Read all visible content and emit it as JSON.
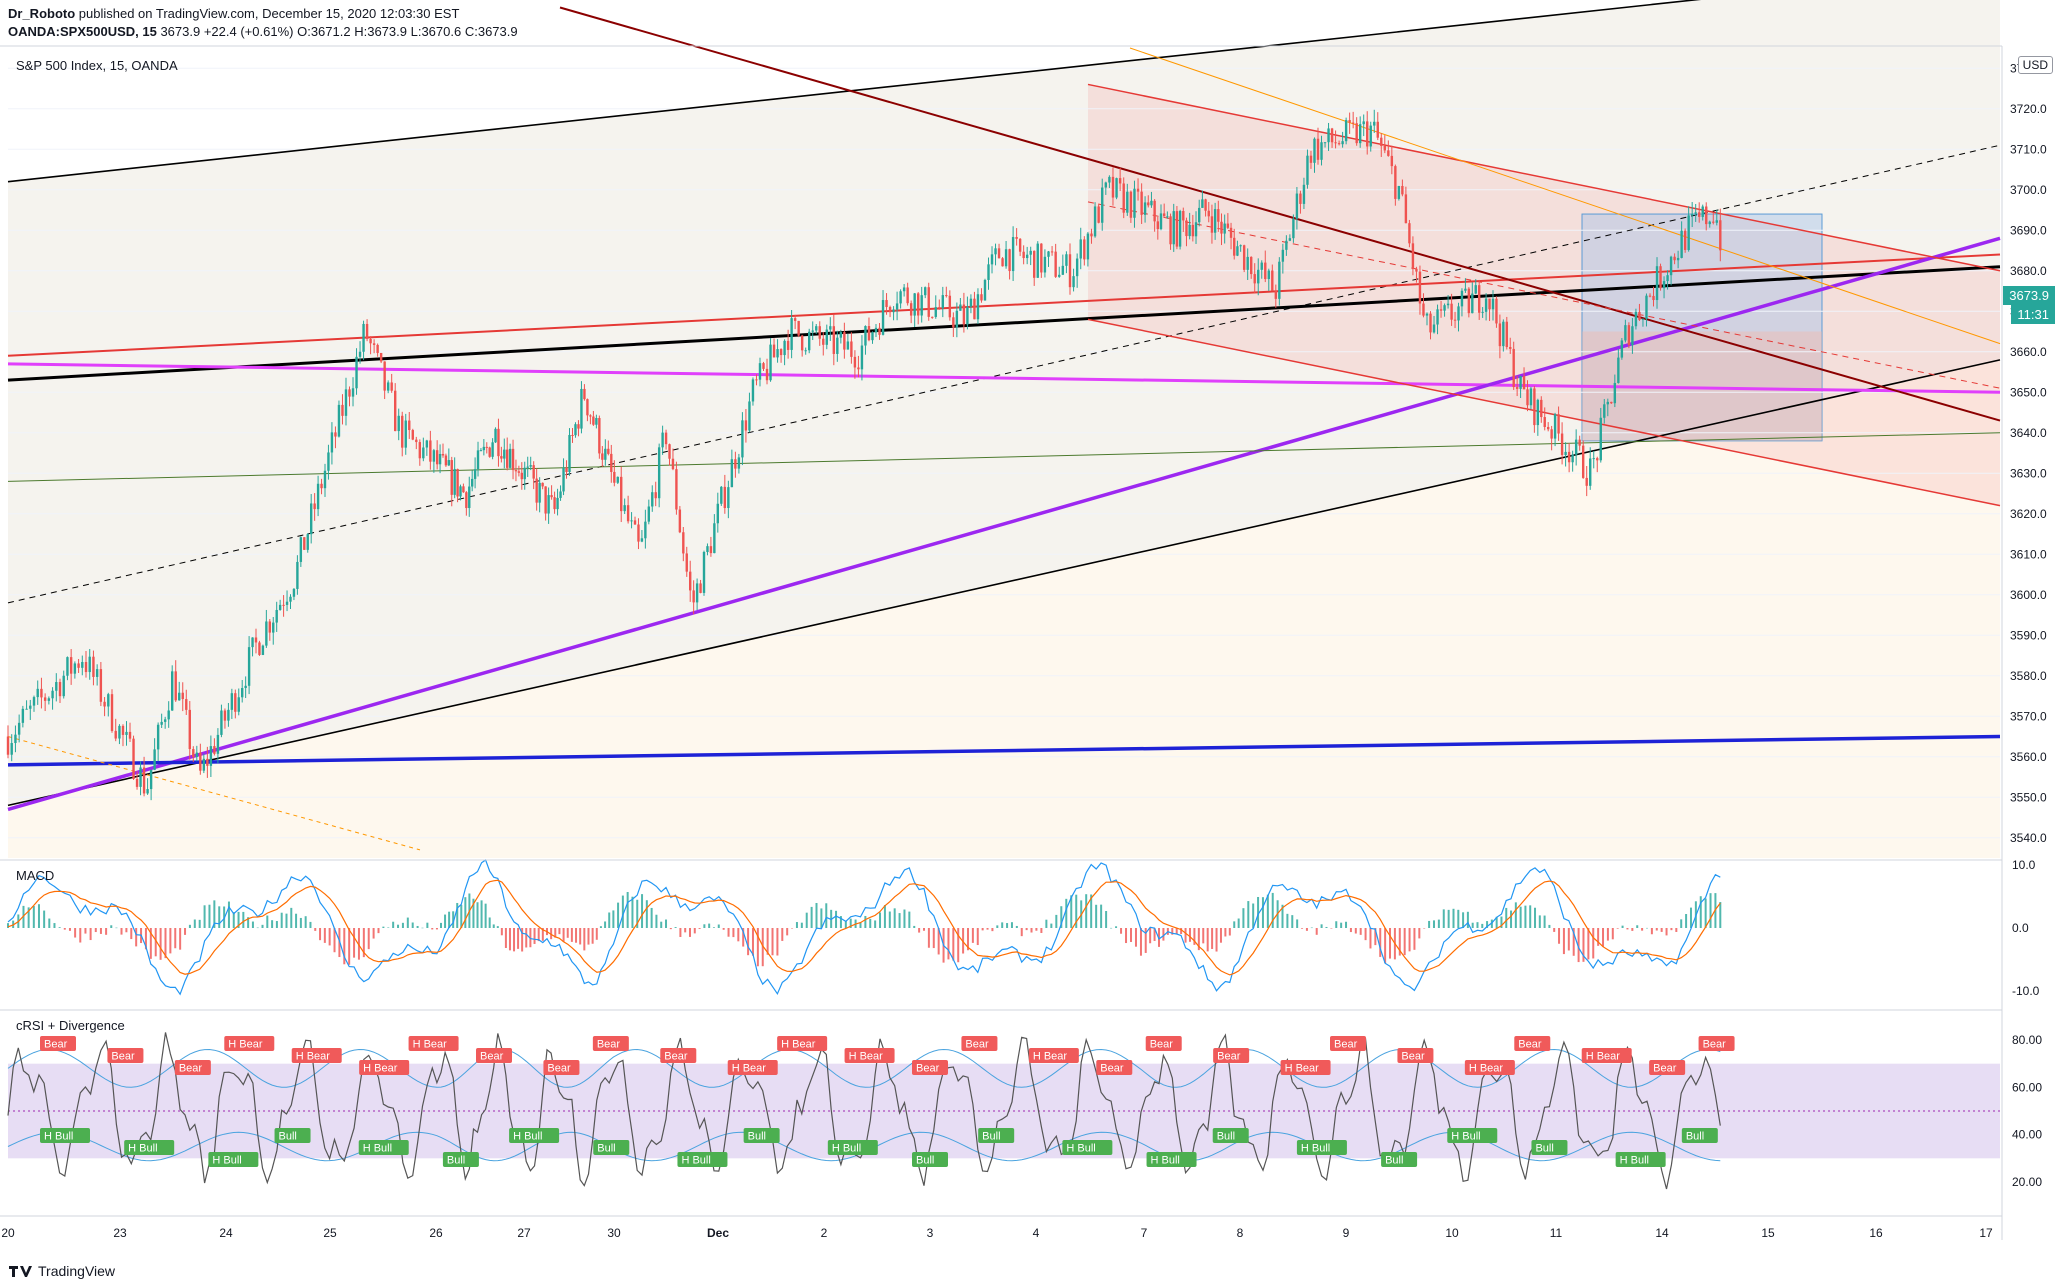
{
  "header": {
    "line1_author": "Dr_Roboto",
    "line1_rest": " published on TradingView.com, December 15, 2020 12:03:30 EST",
    "symbol": "OANDA:SPX500USD, 15",
    "last": "3673.9",
    "change": "+22.4 (+0.61%)",
    "open_label": "O:",
    "open": "3671.2",
    "high_label": "H:",
    "high": "3673.9",
    "low_label": "L:",
    "low": "3670.6",
    "close_label": "C:",
    "close": "3673.9"
  },
  "main_pane": {
    "title": "S&P 500 Index, 15, OANDA",
    "currency": "USD",
    "price_tag": "3673.9",
    "countdown": "11:31"
  },
  "macd_pane": {
    "title": "MACD"
  },
  "crsi_pane": {
    "title": "cRSI + Divergence"
  },
  "footer": {
    "brand": "TradingView"
  },
  "colors": {
    "up": "#26a69a",
    "down": "#ef5350",
    "purple": "#9c27f0",
    "magenta": "#e040fb",
    "blue": "#1e22d6",
    "red": "#e53935",
    "darkred": "#8b0000",
    "orange": "#ff9800",
    "green": "#4c7a2e",
    "black": "#000000"
  },
  "chart_data": {
    "type": "candlestick",
    "title": "S&P 500 Index, 15, OANDA",
    "y_axis": {
      "min": 3535,
      "max": 3735,
      "ticks": [
        3540,
        3550,
        3560,
        3570,
        3580,
        3590,
        3600,
        3610,
        3620,
        3630,
        3640,
        3650,
        3660,
        3670,
        3680,
        3690,
        3700,
        3710,
        3720,
        3730
      ]
    },
    "x_axis": {
      "ticks": [
        "20",
        "23",
        "24",
        "25",
        "26",
        "27",
        "30",
        "Dec",
        "2",
        "3",
        "4",
        "7",
        "8",
        "9",
        "10",
        "11",
        "14",
        "15",
        "16",
        "17"
      ]
    },
    "price_path": [
      [
        "20",
        3565
      ],
      [
        "20",
        3585
      ],
      [
        "23",
        3552
      ],
      [
        "23",
        3580
      ],
      [
        "23",
        3555
      ],
      [
        "24",
        3590
      ],
      [
        "24",
        3605
      ],
      [
        "25",
        3665
      ],
      [
        "25",
        3640
      ],
      [
        "26",
        3625
      ],
      [
        "26",
        3640
      ],
      [
        "27",
        3620
      ],
      [
        "27",
        3650
      ],
      [
        "30",
        3610
      ],
      [
        "30",
        3640
      ],
      [
        "30",
        3597
      ],
      [
        "Dec",
        3650
      ],
      [
        "Dec",
        3665
      ],
      [
        "2",
        3660
      ],
      [
        "2",
        3675
      ],
      [
        "3",
        3668
      ],
      [
        "3",
        3685
      ],
      [
        "4",
        3680
      ],
      [
        "4",
        3700
      ],
      [
        "7",
        3690
      ],
      [
        "7",
        3695
      ],
      [
        "8",
        3675
      ],
      [
        "8",
        3710
      ],
      [
        "9",
        3715
      ],
      [
        "9",
        3700
      ],
      [
        "9",
        3665
      ],
      [
        "10",
        3675
      ],
      [
        "10",
        3650
      ],
      [
        "11",
        3630
      ],
      [
        "11",
        3665
      ],
      [
        "14",
        3690
      ],
      [
        "14",
        3695
      ],
      [
        "14",
        3660
      ],
      [
        "15",
        3645
      ],
      [
        "15",
        3672
      ],
      [
        "15",
        3673.9
      ]
    ],
    "macd": {
      "y_ticks": [
        10.0,
        0.0,
        -10.0
      ],
      "tick_labels": [
        "10.0",
        "0.0",
        "-10.0"
      ]
    },
    "crsi": {
      "y_ticks": [
        80.0,
        60.0,
        40.0,
        20.0
      ],
      "tick_labels": [
        "80.00",
        "60.00",
        "40.00",
        "20.00"
      ],
      "band": [
        30,
        70
      ]
    },
    "crsi_labels": [
      {
        "text": "Bear",
        "type": "bear"
      },
      {
        "text": "Bear",
        "type": "bear"
      },
      {
        "text": "Bear",
        "type": "bear"
      },
      {
        "text": "H Bear",
        "type": "bear"
      },
      {
        "text": "H Bear",
        "type": "bear"
      },
      {
        "text": "H Bear",
        "type": "bear"
      },
      {
        "text": "H Bear",
        "type": "bear"
      },
      {
        "text": "Bear",
        "type": "bear"
      },
      {
        "text": "Bear",
        "type": "bear"
      },
      {
        "text": "Bear",
        "type": "bear"
      },
      {
        "text": "Bear",
        "type": "bear"
      },
      {
        "text": "H Bear",
        "type": "bear"
      },
      {
        "text": "H Bear",
        "type": "bear"
      },
      {
        "text": "H Bear",
        "type": "bear"
      },
      {
        "text": "Bear",
        "type": "bear"
      },
      {
        "text": "Bear",
        "type": "bear"
      },
      {
        "text": "H Bear",
        "type": "bear"
      },
      {
        "text": "Bear",
        "type": "bear"
      },
      {
        "text": "Bear",
        "type": "bear"
      },
      {
        "text": "Bear",
        "type": "bear"
      },
      {
        "text": "H Bear",
        "type": "bear"
      },
      {
        "text": "Bear",
        "type": "bear"
      },
      {
        "text": "Bear",
        "type": "bear"
      },
      {
        "text": "H Bear",
        "type": "bear"
      },
      {
        "text": "Bear",
        "type": "bear"
      },
      {
        "text": "H Bear",
        "type": "bear"
      },
      {
        "text": "Bear",
        "type": "bear"
      },
      {
        "text": "Bear",
        "type": "bear"
      },
      {
        "text": "H Bull",
        "type": "bull"
      },
      {
        "text": "H Bull",
        "type": "bull"
      },
      {
        "text": "H Bull",
        "type": "bull"
      },
      {
        "text": "Bull",
        "type": "bull"
      },
      {
        "text": "H Bull",
        "type": "bull"
      },
      {
        "text": "Bull",
        "type": "bull"
      },
      {
        "text": "H Bull",
        "type": "bull"
      },
      {
        "text": "Bull",
        "type": "bull"
      },
      {
        "text": "H Bull",
        "type": "bull"
      },
      {
        "text": "Bull",
        "type": "bull"
      },
      {
        "text": "H Bull",
        "type": "bull"
      },
      {
        "text": "Bull",
        "type": "bull"
      },
      {
        "text": "Bull",
        "type": "bull"
      },
      {
        "text": "H Bull",
        "type": "bull"
      },
      {
        "text": "H Bull",
        "type": "bull"
      },
      {
        "text": "Bull",
        "type": "bull"
      },
      {
        "text": "H Bull",
        "type": "bull"
      },
      {
        "text": "Bull",
        "type": "bull"
      },
      {
        "text": "H Bull",
        "type": "bull"
      },
      {
        "text": "Bull",
        "type": "bull"
      },
      {
        "text": "H Bull",
        "type": "bull"
      },
      {
        "text": "Bull",
        "type": "bull"
      }
    ]
  }
}
